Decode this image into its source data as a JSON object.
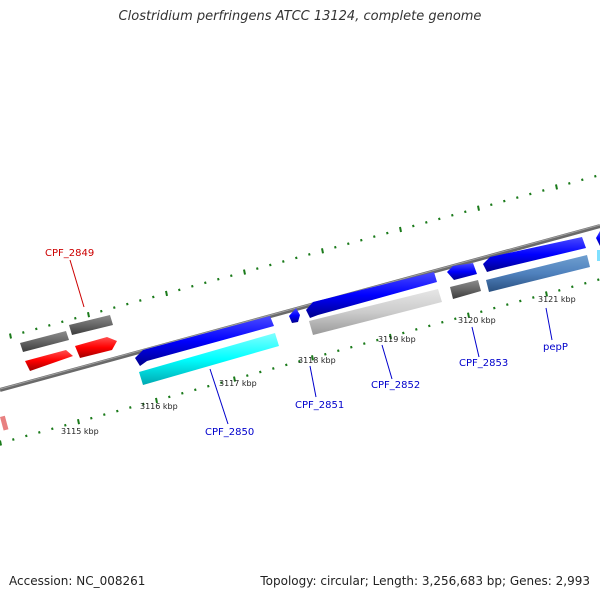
{
  "title": "Clostridium perfringens ATCC 13124, complete genome",
  "footer": {
    "accession": "Accession: NC_008261",
    "topology": "Topology: circular; Length: 3,256,683 bp; Genes: 2,993"
  },
  "kbp_marks": [
    {
      "label": "3115 kbp"
    },
    {
      "label": "3116 kbp"
    },
    {
      "label": "3117 kbp"
    },
    {
      "label": "3118 kbp"
    },
    {
      "label": "3119 kbp"
    },
    {
      "label": "3120 kbp"
    },
    {
      "label": "3121 kbp"
    }
  ],
  "genes": [
    {
      "name": "CPF_2849",
      "color": "#cc0000"
    },
    {
      "name": "CPF_2850",
      "color": "#0000cc"
    },
    {
      "name": "CPF_2851",
      "color": "#0000cc"
    },
    {
      "name": "CPF_2852",
      "color": "#0000cc"
    },
    {
      "name": "CPF_2853",
      "color": "#0000cc"
    },
    {
      "name": "pepP",
      "color": "#0000cc"
    }
  ],
  "feature_colors": {
    "backbone": "#808080",
    "cds_forward": "#0000ff",
    "cds_reverse": "#ff0000",
    "blast_gray": "#666666",
    "blast_cyan": "#00ffff",
    "blast_light": "#cccccc",
    "blast_steel": "#4f81bd",
    "gc_ticks": "#1a7a1a"
  }
}
